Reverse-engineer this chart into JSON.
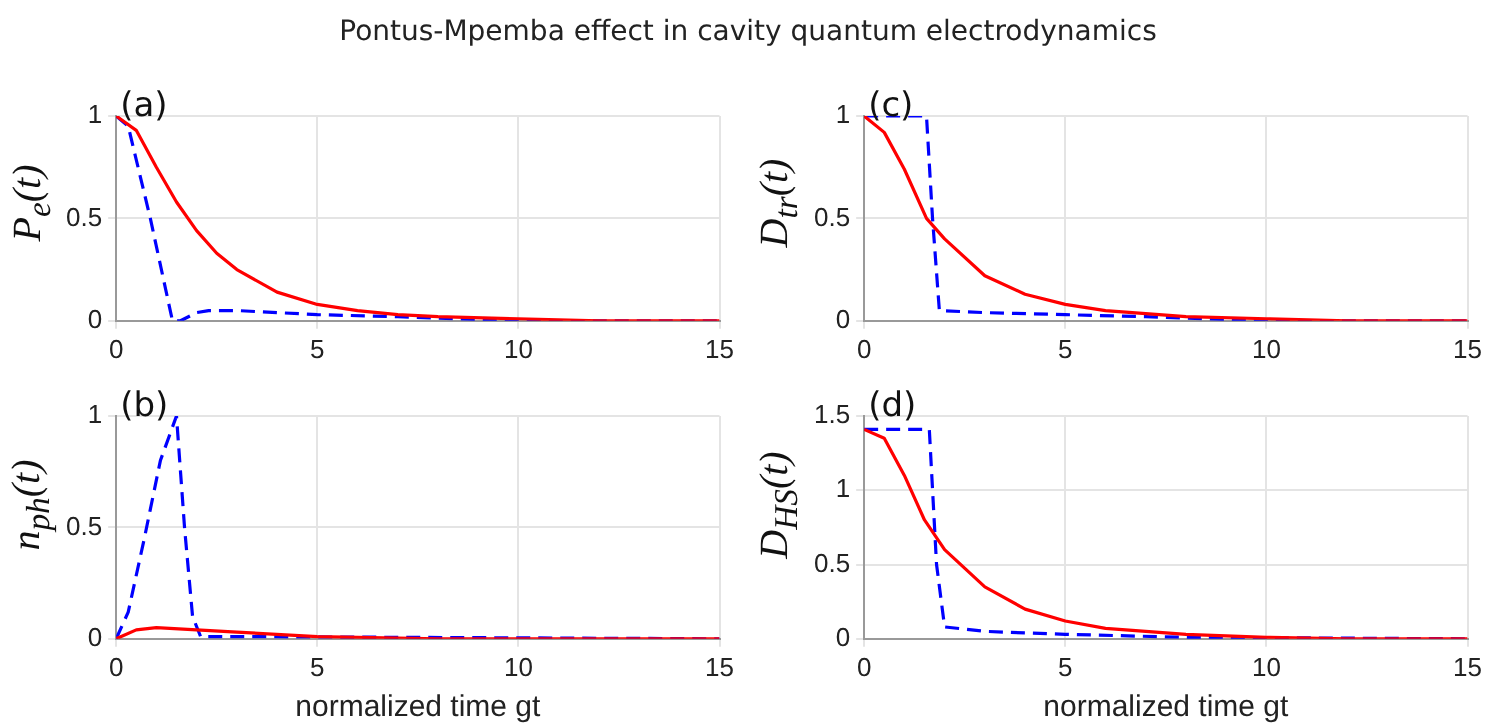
{
  "chart_data": [
    {
      "type": "line",
      "title": "Pontus-Mpemba effect in cavity quantum electrodynamics",
      "ylabel": "P$_{e}$(t)",
      "annotations": [
        "(a)"
      ],
      "xlim": [
        0,
        15
      ],
      "xticks": [
        0,
        5,
        10,
        15
      ],
      "ylim": [
        0,
        1
      ],
      "yticks": [
        0,
        0.5,
        1
      ],
      "grid": true,
      "legend": false,
      "series": [
        {
          "color": "#ff0000",
          "line_style": "solid",
          "x": [
            0,
            0.5,
            1,
            1.5,
            2,
            2.5,
            3,
            4,
            5,
            6,
            7,
            8,
            10,
            12,
            15
          ],
          "values": [
            1,
            0.93,
            0.75,
            0.58,
            0.44,
            0.33,
            0.25,
            0.14,
            0.08,
            0.05,
            0.03,
            0.02,
            0.01,
            0,
            0
          ]
        },
        {
          "color": "#0000ff",
          "line_style": "dashed",
          "x": [
            0,
            0.3,
            0.85,
            1.4,
            1.6,
            2,
            2.3,
            3,
            5,
            7,
            10,
            15
          ],
          "values": [
            1,
            0.95,
            0.5,
            0,
            0,
            0.04,
            0.05,
            0.05,
            0.03,
            0.02,
            0,
            0
          ]
        }
      ]
    },
    {
      "type": "line",
      "ylabel": "D$_{tr}$(t)",
      "annotations": [
        "(c)"
      ],
      "xlim": [
        0,
        15
      ],
      "xticks": [
        0,
        5,
        10,
        15
      ],
      "ylim": [
        0,
        1
      ],
      "yticks": [
        0,
        0.5,
        1
      ],
      "grid": true,
      "legend": false,
      "series": [
        {
          "color": "#ff0000",
          "line_style": "solid",
          "x": [
            0,
            0.5,
            1,
            1.55,
            2,
            3,
            4,
            5,
            6,
            8,
            10,
            12,
            15
          ],
          "values": [
            1,
            0.92,
            0.74,
            0.5,
            0.4,
            0.22,
            0.13,
            0.08,
            0.05,
            0.02,
            0.01,
            0,
            0
          ]
        },
        {
          "color": "#0000ff",
          "line_style": "dashed",
          "x": [
            0,
            1.55,
            1.7,
            1.87,
            3,
            5,
            7,
            10,
            15
          ],
          "values": [
            1,
            1,
            0.5,
            0.05,
            0.04,
            0.03,
            0.02,
            0,
            0
          ]
        }
      ]
    },
    {
      "type": "line",
      "xlabel": "normalized time gt",
      "ylabel": "n$_{ph}$(t)",
      "annotations": [
        "(b)"
      ],
      "xlim": [
        0,
        15
      ],
      "xticks": [
        0,
        5,
        10,
        15
      ],
      "ylim": [
        0,
        1
      ],
      "yticks": [
        0,
        0.5,
        1
      ],
      "grid": true,
      "legend": false,
      "series": [
        {
          "color": "#ff0000",
          "line_style": "solid",
          "x": [
            0,
            0.5,
            1,
            2,
            3,
            5,
            8,
            15
          ],
          "values": [
            0,
            0.04,
            0.05,
            0.04,
            0.03,
            0.01,
            0,
            0
          ]
        },
        {
          "color": "#0000ff",
          "line_style": "dashed",
          "x": [
            0,
            0.3,
            0.7,
            1.1,
            1.5,
            1.7,
            1.9,
            2.1,
            3,
            15
          ],
          "values": [
            0,
            0.12,
            0.45,
            0.8,
            1,
            0.5,
            0.1,
            0.01,
            0.01,
            0
          ]
        }
      ]
    },
    {
      "type": "line",
      "xlabel": "normalized time gt",
      "ylabel": "D$_{HS}$(t)",
      "annotations": [
        "(d)"
      ],
      "xlim": [
        0,
        15
      ],
      "xticks": [
        0,
        5,
        10,
        15
      ],
      "ylim": [
        0,
        1.5
      ],
      "yticks": [
        0,
        0.5,
        1,
        1.5
      ],
      "grid": true,
      "legend": false,
      "series": [
        {
          "color": "#ff0000",
          "line_style": "solid",
          "x": [
            0,
            0.5,
            1,
            1.5,
            2,
            3,
            4,
            5,
            6,
            8,
            10,
            12,
            15
          ],
          "values": [
            1.41,
            1.35,
            1.1,
            0.8,
            0.6,
            0.35,
            0.2,
            0.12,
            0.07,
            0.03,
            0.01,
            0,
            0
          ]
        },
        {
          "color": "#0000ff",
          "line_style": "dashed",
          "x": [
            0,
            1.62,
            1.8,
            2,
            3,
            5,
            8,
            15
          ],
          "values": [
            1.41,
            1.41,
            0.5,
            0.08,
            0.05,
            0.03,
            0.01,
            0
          ]
        }
      ]
    }
  ]
}
